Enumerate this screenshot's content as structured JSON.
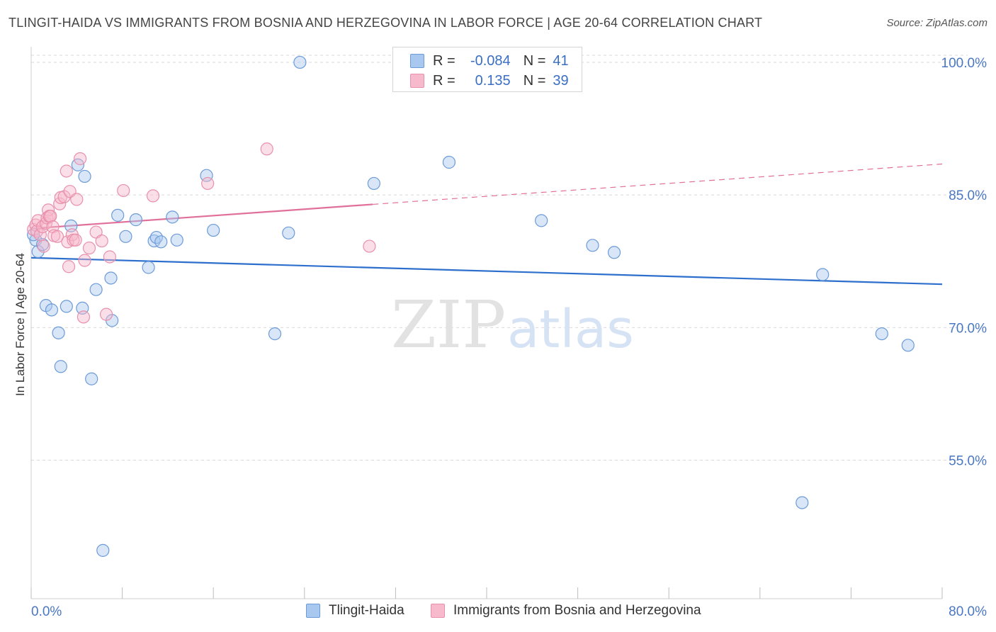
{
  "header": {
    "title": "TLINGIT-HAIDA VS IMMIGRANTS FROM BOSNIA AND HERZEGOVINA IN LABOR FORCE | AGE 20-64 CORRELATION CHART",
    "source": "Source: ZipAtlas.com"
  },
  "watermark": {
    "zip": "ZIP",
    "atlas": "atlas"
  },
  "legend": {
    "r_label": "R =",
    "n_label": "N =",
    "series1": {
      "r": "-0.084",
      "n": "41"
    },
    "series2": {
      "r": "0.135",
      "n": "39"
    }
  },
  "colors": {
    "series1_fill": "#a9c8f0",
    "series1_stroke": "#6c9bd8",
    "series1_line": "#2d6fcc",
    "series2_fill": "#f7b9cc",
    "series2_stroke": "#e890ac",
    "series2_line": "#e0709a",
    "tick_text": "#4a77c4",
    "grid": "#d9d9d9"
  },
  "chart_data": {
    "type": "scatter",
    "title": "TLINGIT-HAIDA VS IMMIGRANTS FROM BOSNIA AND HERZEGOVINA IN LABOR FORCE | AGE 20-64 CORRELATION CHART",
    "xlabel": "",
    "ylabel": "In Labor Force | Age 20-64",
    "xlim": [
      0,
      80
    ],
    "ylim": [
      39.5,
      102
    ],
    "x_tick_labels": [
      "0.0%",
      "80.0%"
    ],
    "y_ticks": [
      55,
      70,
      85,
      100
    ],
    "y_tick_labels": [
      "55.0%",
      "70.0%",
      "85.0%",
      "100.0%"
    ],
    "grid": "horizontal-dashed",
    "legend_position": "bottom",
    "series": [
      {
        "name": "Tlingit-Haida",
        "r": -0.084,
        "n": 41,
        "trend": {
          "x": [
            0,
            80
          ],
          "y": [
            77.9,
            74.9
          ],
          "dashed_from": null
        },
        "points": [
          [
            0.4,
            79.9
          ],
          [
            0.6,
            78.6
          ],
          [
            1.0,
            79.4
          ],
          [
            1.3,
            72.5
          ],
          [
            1.8,
            72.0
          ],
          [
            2.4,
            69.4
          ],
          [
            2.6,
            65.6
          ],
          [
            3.1,
            72.4
          ],
          [
            3.5,
            81.5
          ],
          [
            4.1,
            88.4
          ],
          [
            4.5,
            72.2
          ],
          [
            4.7,
            87.1
          ],
          [
            5.3,
            64.2
          ],
          [
            5.7,
            74.3
          ],
          [
            6.3,
            44.8
          ],
          [
            7.0,
            75.6
          ],
          [
            7.1,
            70.8
          ],
          [
            7.6,
            82.7
          ],
          [
            8.3,
            80.3
          ],
          [
            9.2,
            82.2
          ],
          [
            10.3,
            76.8
          ],
          [
            10.8,
            79.8
          ],
          [
            11.0,
            80.2
          ],
          [
            11.4,
            79.7
          ],
          [
            12.4,
            82.5
          ],
          [
            12.8,
            79.9
          ],
          [
            15.4,
            87.2
          ],
          [
            16.0,
            81.0
          ],
          [
            21.4,
            69.3
          ],
          [
            22.6,
            80.7
          ],
          [
            23.6,
            100.0
          ],
          [
            30.1,
            86.3
          ],
          [
            36.7,
            88.7
          ],
          [
            44.8,
            82.1
          ],
          [
            49.3,
            79.3
          ],
          [
            51.2,
            78.5
          ],
          [
            67.7,
            50.2
          ],
          [
            69.5,
            76.0
          ],
          [
            74.7,
            69.3
          ],
          [
            77.0,
            68.0
          ],
          [
            0.2,
            80.5
          ]
        ]
      },
      {
        "name": "Immigrants from Bosnia and Herzegovina",
        "r": 0.135,
        "n": 39,
        "trend": {
          "x": [
            0,
            80
          ],
          "y": [
            81.2,
            88.5
          ],
          "solid_to_x": 30.0
        },
        "points": [
          [
            0.2,
            81.1
          ],
          [
            0.4,
            81.6
          ],
          [
            0.5,
            80.9
          ],
          [
            0.6,
            82.1
          ],
          [
            0.8,
            80.5
          ],
          [
            1.0,
            81.4
          ],
          [
            1.1,
            79.2
          ],
          [
            1.3,
            81.8
          ],
          [
            1.4,
            82.4
          ],
          [
            1.5,
            83.3
          ],
          [
            1.6,
            82.6
          ],
          [
            1.7,
            82.6
          ],
          [
            1.9,
            81.4
          ],
          [
            2.0,
            80.4
          ],
          [
            2.3,
            80.3
          ],
          [
            2.5,
            84.0
          ],
          [
            2.6,
            84.7
          ],
          [
            2.9,
            84.8
          ],
          [
            3.1,
            87.7
          ],
          [
            3.2,
            79.7
          ],
          [
            3.3,
            76.9
          ],
          [
            3.4,
            85.4
          ],
          [
            3.6,
            80.5
          ],
          [
            3.7,
            79.9
          ],
          [
            3.9,
            79.9
          ],
          [
            4.0,
            84.5
          ],
          [
            4.3,
            89.1
          ],
          [
            4.7,
            77.6
          ],
          [
            5.1,
            79.0
          ],
          [
            5.7,
            80.8
          ],
          [
            6.2,
            79.8
          ],
          [
            6.6,
            71.5
          ],
          [
            6.9,
            78.0
          ],
          [
            8.1,
            85.5
          ],
          [
            10.7,
            84.9
          ],
          [
            15.5,
            86.3
          ],
          [
            20.7,
            90.2
          ],
          [
            29.7,
            79.2
          ],
          [
            4.6,
            71.2
          ]
        ]
      }
    ]
  },
  "bottom_legend": {
    "series1_label": "Tlingit-Haida",
    "series2_label": "Immigrants from Bosnia and Herzegovina"
  }
}
